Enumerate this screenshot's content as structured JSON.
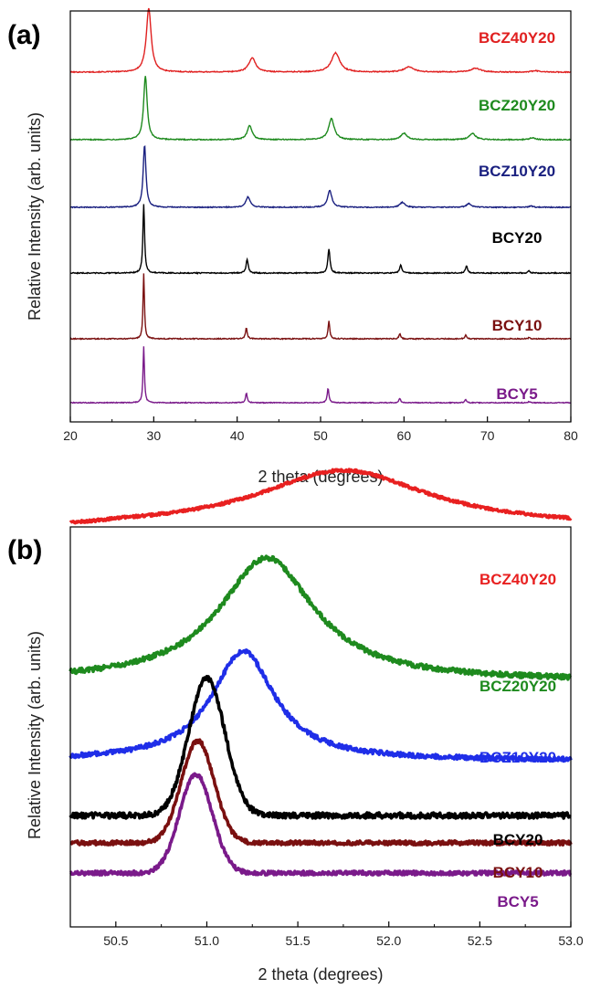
{
  "chart_data": [
    {
      "type": "line",
      "panel": "(a)",
      "xlabel": "2 theta (degrees)",
      "ylabel": "Relative Intensity (arb. units)",
      "xlim": [
        20,
        80
      ],
      "xticks": [
        20,
        30,
        40,
        50,
        60,
        70,
        80
      ],
      "xtick_labels": [
        "20",
        "30",
        "40",
        "50",
        "60",
        "70",
        "80"
      ],
      "y_ticks_shown": false,
      "stack_order": [
        "BCZ40Y20",
        "BCZ20Y20",
        "BCZ10Y20",
        "BCY20",
        "BCY10",
        "BCY5"
      ],
      "peak_positions": [
        29.0,
        41.2,
        51.0,
        59.6,
        67.6,
        75.0
      ],
      "series": [
        {
          "name": "BCZ40Y20",
          "color": "#e02020",
          "offset": 5,
          "peaks": [
            {
              "x": 29.4,
              "h": 1.0,
              "w": 0.35
            },
            {
              "x": 41.8,
              "h": 0.22,
              "w": 0.5
            },
            {
              "x": 51.8,
              "h": 0.3,
              "w": 0.6
            },
            {
              "x": 60.6,
              "h": 0.08,
              "w": 0.7
            },
            {
              "x": 68.6,
              "h": 0.06,
              "w": 0.7
            },
            {
              "x": 75.8,
              "h": 0.02,
              "w": 0.6
            }
          ]
        },
        {
          "name": "BCZ20Y20",
          "color": "#1e8a1e",
          "offset": 4,
          "peaks": [
            {
              "x": 29.0,
              "h": 1.0,
              "w": 0.25
            },
            {
              "x": 41.5,
              "h": 0.22,
              "w": 0.35
            },
            {
              "x": 51.3,
              "h": 0.33,
              "w": 0.4
            },
            {
              "x": 60.0,
              "h": 0.1,
              "w": 0.45
            },
            {
              "x": 68.2,
              "h": 0.1,
              "w": 0.45
            },
            {
              "x": 75.4,
              "h": 0.03,
              "w": 0.4
            }
          ]
        },
        {
          "name": "BCZ10Y20",
          "color": "#1a2080",
          "offset": 3,
          "peaks": [
            {
              "x": 28.9,
              "h": 1.0,
              "w": 0.2
            },
            {
              "x": 41.3,
              "h": 0.17,
              "w": 0.3
            },
            {
              "x": 51.1,
              "h": 0.27,
              "w": 0.3
            },
            {
              "x": 59.8,
              "h": 0.08,
              "w": 0.35
            },
            {
              "x": 67.8,
              "h": 0.06,
              "w": 0.35
            },
            {
              "x": 75.2,
              "h": 0.02,
              "w": 0.3
            }
          ]
        },
        {
          "name": "BCY20",
          "color": "#000000",
          "offset": 2,
          "peaks": [
            {
              "x": 28.8,
              "h": 1.0,
              "w": 0.12
            },
            {
              "x": 41.2,
              "h": 0.2,
              "w": 0.15
            },
            {
              "x": 51.0,
              "h": 0.35,
              "w": 0.15
            },
            {
              "x": 59.6,
              "h": 0.12,
              "w": 0.15
            },
            {
              "x": 67.5,
              "h": 0.1,
              "w": 0.15
            },
            {
              "x": 75.0,
              "h": 0.03,
              "w": 0.15
            }
          ]
        },
        {
          "name": "BCY10",
          "color": "#7a1010",
          "offset": 1,
          "peaks": [
            {
              "x": 28.8,
              "h": 1.0,
              "w": 0.1
            },
            {
              "x": 41.1,
              "h": 0.17,
              "w": 0.12
            },
            {
              "x": 51.0,
              "h": 0.27,
              "w": 0.12
            },
            {
              "x": 59.5,
              "h": 0.08,
              "w": 0.12
            },
            {
              "x": 67.4,
              "h": 0.06,
              "w": 0.12
            },
            {
              "x": 75.0,
              "h": 0.02,
              "w": 0.12
            }
          ]
        },
        {
          "name": "BCY5",
          "color": "#7a1a8a",
          "offset": 0,
          "peaks": [
            {
              "x": 28.8,
              "h": 1.0,
              "w": 0.1
            },
            {
              "x": 41.1,
              "h": 0.17,
              "w": 0.12
            },
            {
              "x": 50.9,
              "h": 0.26,
              "w": 0.12
            },
            {
              "x": 59.5,
              "h": 0.08,
              "w": 0.12
            },
            {
              "x": 67.4,
              "h": 0.06,
              "w": 0.12
            },
            {
              "x": 75.0,
              "h": 0.02,
              "w": 0.12
            }
          ]
        }
      ]
    },
    {
      "type": "line",
      "panel": "(b)",
      "xlabel": "2 theta (degrees)",
      "ylabel": "Relative Intensity (arb. units)",
      "xlim": [
        50.25,
        53.0
      ],
      "xticks": [
        50.5,
        51.0,
        51.5,
        52.0,
        52.5,
        53.0
      ],
      "xtick_labels": [
        "50.5",
        "51.0",
        "51.5",
        "52.0",
        "52.5",
        "53.0"
      ],
      "y_ticks_shown": false,
      "stack_order": [
        "BCZ40Y20",
        "BCZ20Y20",
        "BCZ10Y20",
        "BCY20",
        "BCY10",
        "BCY5"
      ],
      "series": [
        {
          "name": "BCZ40Y20",
          "color": "#e82020",
          "offset": 5.2,
          "peak_x": 51.75,
          "height": 1.35,
          "width": 0.42
        },
        {
          "name": "BCZ20Y20",
          "color": "#1e8a1e",
          "offset": 3.1,
          "peak_x": 51.33,
          "height": 2.05,
          "width": 0.3
        },
        {
          "name": "BCZ10Y20",
          "color": "#1f2ee8",
          "offset": 2.1,
          "peak_x": 51.2,
          "height": 1.9,
          "width": 0.22
        },
        {
          "name": "BCY20",
          "color": "#000000",
          "offset": 0.8,
          "peak_x": 51.0,
          "height": 2.05,
          "width": 0.1
        },
        {
          "name": "BCY10",
          "color": "#7a1010",
          "offset": 0.4,
          "peak_x": 50.95,
          "height": 1.55,
          "width": 0.09
        },
        {
          "name": "BCY5",
          "color": "#7a1a8a",
          "offset": 0.0,
          "peak_x": 50.94,
          "height": 1.45,
          "width": 0.09
        }
      ]
    }
  ]
}
